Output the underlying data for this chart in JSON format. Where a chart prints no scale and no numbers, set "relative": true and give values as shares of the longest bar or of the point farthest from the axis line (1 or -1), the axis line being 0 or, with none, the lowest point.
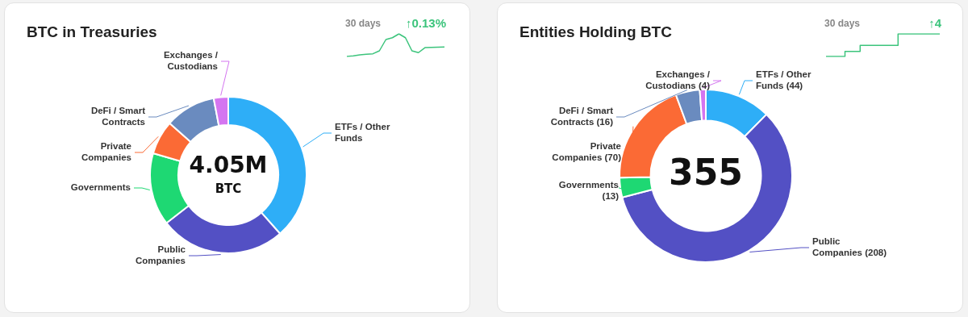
{
  "chart_data": [
    {
      "type": "donut",
      "title": "BTC in Treasuries",
      "categories": [
        "ETFs / Other Funds",
        "Public Companies",
        "Governments",
        "Private Companies",
        "DeFi / Smart Contracts",
        "Exchanges / Custodians"
      ],
      "values": [
        38.5,
        26,
        15,
        7,
        10.5,
        3
      ],
      "colors": [
        "#2eaef7",
        "#5350c4",
        "#1ed873",
        "#fb6a35",
        "#6a8bbf",
        "#d475f0"
      ],
      "annotations": [
        "4.05M",
        "BTC"
      ],
      "legend": false
    },
    {
      "type": "line",
      "title": "30 days",
      "annotations": [
        "↑0.13%"
      ],
      "relative": true,
      "categories": [
        null,
        null,
        null,
        null,
        null,
        null,
        null,
        null,
        null,
        null,
        null,
        null,
        null,
        null,
        null,
        null
      ],
      "values": [
        0,
        0.03,
        0.07,
        0.1,
        0.12,
        0.25,
        0.75,
        0.83,
        1,
        0.83,
        0.25,
        0.17,
        0.39,
        0.4,
        0.41,
        0.42
      ],
      "color": "#3cc47c",
      "legend": false
    },
    {
      "type": "donut",
      "title": "Entities Holding BTC",
      "categories": [
        "ETFs / Other Funds",
        "Public Companies",
        "Governments",
        "Private Companies",
        "DeFi / Smart Contracts",
        "Exchanges / Custodians"
      ],
      "values": [
        44,
        208,
        13,
        70,
        16,
        4
      ],
      "value_labels": [
        "(44)",
        "(208)",
        "(13)",
        "(70)",
        "(16)",
        "(4)"
      ],
      "colors": [
        "#2eaef7",
        "#5350c4",
        "#1ed873",
        "#fb6a35",
        "#6a8bbf",
        "#d475f0"
      ],
      "annotations": [
        "355"
      ],
      "legend": false
    },
    {
      "type": "step",
      "title": "30 days",
      "annotations": [
        "↑4"
      ],
      "relative": true,
      "categories": [
        null,
        null,
        null,
        null,
        null,
        null,
        null,
        null,
        null,
        null,
        null,
        null,
        null,
        null,
        null,
        null
      ],
      "values": [
        0,
        0,
        0,
        0.22,
        0.22,
        0.49,
        0.49,
        0.49,
        0.49,
        0.49,
        1,
        1,
        1,
        1,
        1,
        1
      ],
      "color": "#3cc47c",
      "legend": false
    }
  ]
}
